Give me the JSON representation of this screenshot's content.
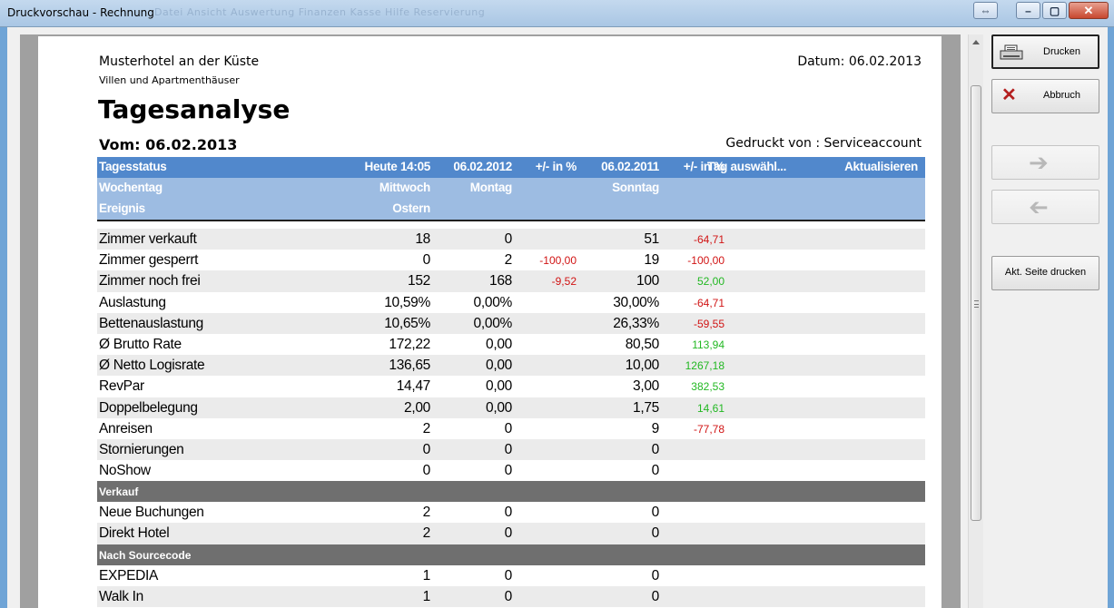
{
  "window": {
    "title": "Druckvorschau - Rechnung",
    "ghost_menu": "Datei   Ansicht   Auswertung   Finanzen   Kasse   Hilfe   Reservierung"
  },
  "buttons": {
    "print": "Drucken",
    "cancel": "Abbruch",
    "next_icon": "arrow-right-icon",
    "prev_icon": "arrow-left-icon",
    "print_page": "Akt. Seite drucken"
  },
  "report": {
    "hotel_name": "Musterhotel an der Küste",
    "hotel_sub": "Villen und Apartmenthäuser",
    "datum": "Datum: 06.02.2013",
    "title": "Tagesanalyse",
    "vom": "Vom: 06.02.2013",
    "printed_by": "Gedruckt von : Serviceaccount"
  },
  "table": {
    "header1": {
      "label": "Tagesstatus",
      "heute": "Heute 14:05",
      "d2012": "06.02.2012",
      "p1": "+/- in %",
      "d2011": "06.02.2011",
      "p2": "+/- in %",
      "tag": "Tag auswähl...",
      "akt": "Aktualisieren"
    },
    "header2": {
      "label": "Wochentag",
      "heute": "Mittwoch",
      "d2012": "Montag",
      "d2011": "Sonntag"
    },
    "header3": {
      "label": "Ereignis",
      "heute": "Ostern"
    },
    "rows": [
      {
        "label": "Zimmer verkauft",
        "heute": "18",
        "d2012": "0",
        "p1": "",
        "d2011": "51",
        "p2": "-64,71",
        "p1_sign": "",
        "p2_sign": "neg"
      },
      {
        "label": "Zimmer gesperrt",
        "heute": "0",
        "d2012": "2",
        "p1": "-100,00",
        "d2011": "19",
        "p2": "-100,00",
        "p1_sign": "neg",
        "p2_sign": "neg"
      },
      {
        "label": "Zimmer noch frei",
        "heute": "152",
        "d2012": "168",
        "p1": "-9,52",
        "d2011": "100",
        "p2": "52,00",
        "p1_sign": "neg",
        "p2_sign": "pos"
      },
      {
        "label": "Auslastung",
        "heute": "10,59%",
        "d2012": "0,00%",
        "p1": "",
        "d2011": "30,00%",
        "p2": "-64,71",
        "p1_sign": "",
        "p2_sign": "neg"
      },
      {
        "label": "Bettenauslastung",
        "heute": "10,65%",
        "d2012": "0,00%",
        "p1": "",
        "d2011": "26,33%",
        "p2": "-59,55",
        "p1_sign": "",
        "p2_sign": "neg"
      },
      {
        "label": "Ø Brutto Rate",
        "heute": "172,22",
        "d2012": "0,00",
        "p1": "",
        "d2011": "80,50",
        "p2": "113,94",
        "p1_sign": "",
        "p2_sign": "pos"
      },
      {
        "label": "Ø Netto Logisrate",
        "heute": "136,65",
        "d2012": "0,00",
        "p1": "",
        "d2011": "10,00",
        "p2": "1267,18",
        "p1_sign": "",
        "p2_sign": "pos"
      },
      {
        "label": "RevPar",
        "heute": "14,47",
        "d2012": "0,00",
        "p1": "",
        "d2011": "3,00",
        "p2": "382,53",
        "p1_sign": "",
        "p2_sign": "pos"
      },
      {
        "label": "Doppelbelegung",
        "heute": "2,00",
        "d2012": "0,00",
        "p1": "",
        "d2011": "1,75",
        "p2": "14,61",
        "p1_sign": "",
        "p2_sign": "pos"
      },
      {
        "label": "Anreisen",
        "heute": "2",
        "d2012": "0",
        "p1": "",
        "d2011": "9",
        "p2": "-77,78",
        "p1_sign": "",
        "p2_sign": "neg"
      },
      {
        "label": "Stornierungen",
        "heute": "0",
        "d2012": "0",
        "p1": "",
        "d2011": "0",
        "p2": "",
        "p1_sign": "",
        "p2_sign": ""
      },
      {
        "label": "NoShow",
        "heute": "0",
        "d2012": "0",
        "p1": "",
        "d2011": "0",
        "p2": "",
        "p1_sign": "",
        "p2_sign": ""
      }
    ],
    "section_verkauf": "Verkauf",
    "verkauf_rows": [
      {
        "label": "Neue Buchungen",
        "heute": "2",
        "d2012": "0",
        "d2011": "0"
      },
      {
        "label": "Direkt Hotel",
        "heute": "2",
        "d2012": "0",
        "d2011": "0"
      }
    ],
    "section_source": "Nach Sourcecode",
    "source_rows": [
      {
        "label": "EXPEDIA",
        "heute": "1",
        "d2012": "0",
        "d2011": "0"
      },
      {
        "label": "Walk In",
        "heute": "1",
        "d2012": "0",
        "d2011": "0"
      }
    ]
  },
  "colors": {
    "header_dark": "#5188cc",
    "header_light": "#9dbce2",
    "section": "#6f6f6f",
    "negative": "#d11414",
    "positive": "#22b822"
  }
}
